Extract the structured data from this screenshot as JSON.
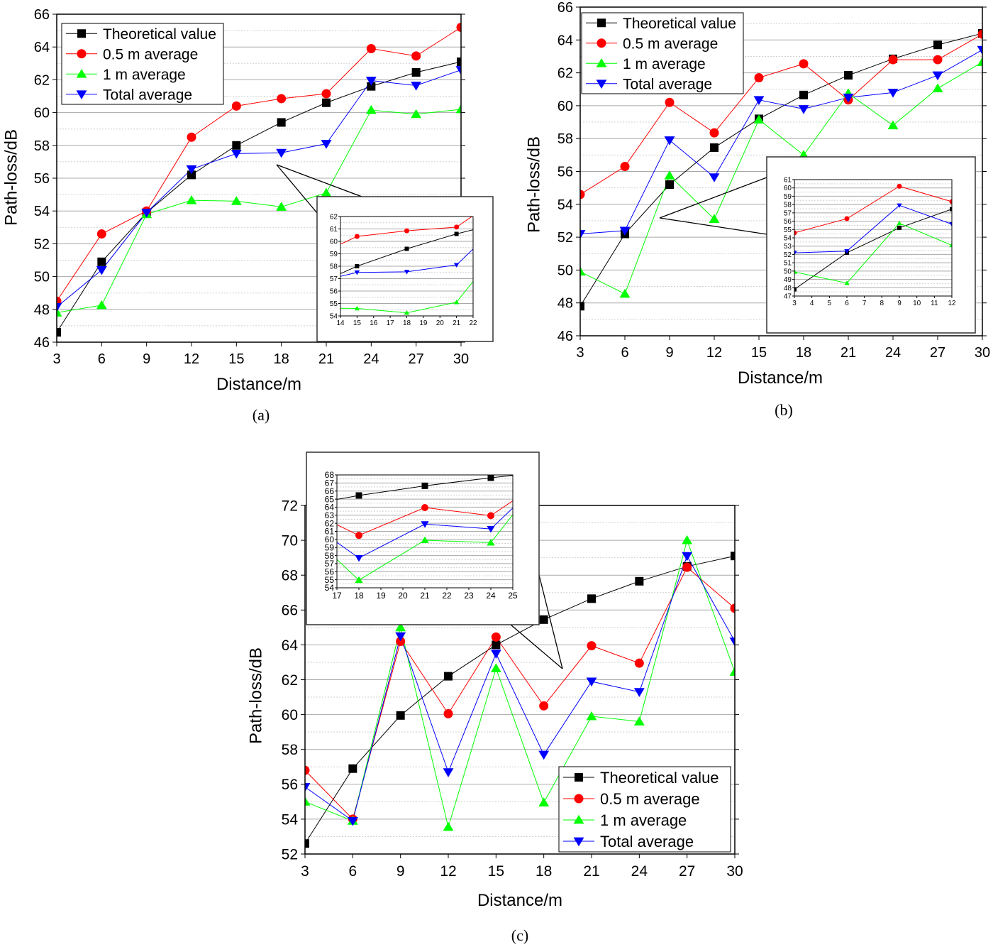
{
  "chart_data": [
    {
      "type": "line",
      "caption": "(a)",
      "xlabel": "Distance/m",
      "ylabel": "Path-loss/dB",
      "xlim": [
        3,
        30
      ],
      "ylim": [
        46,
        66
      ],
      "xticks": [
        3,
        6,
        9,
        12,
        15,
        18,
        21,
        24,
        27,
        30
      ],
      "yticks": [
        46,
        48,
        50,
        52,
        54,
        56,
        58,
        60,
        62,
        64,
        66
      ],
      "grid": true,
      "legend": "top-left",
      "x": [
        3,
        6,
        9,
        12,
        15,
        18,
        21,
        24,
        27,
        30
      ],
      "series": [
        {
          "name": "Theoretical value",
          "color": "#000000",
          "marker": "square",
          "values": [
            46.6,
            50.9,
            53.9,
            56.2,
            58.0,
            59.4,
            60.6,
            61.6,
            62.45,
            63.1
          ]
        },
        {
          "name": "0.5 m average",
          "color": "#ff0000",
          "marker": "circle",
          "values": [
            48.5,
            52.6,
            54.0,
            58.5,
            60.4,
            60.85,
            61.15,
            63.9,
            63.45,
            65.2
          ]
        },
        {
          "name": "1 m average",
          "color": "#00ff00",
          "marker": "triangle-up",
          "values": [
            47.8,
            48.25,
            53.8,
            54.65,
            54.6,
            54.25,
            55.1,
            60.15,
            59.9,
            60.2
          ]
        },
        {
          "name": "Total average",
          "color": "#0000ff",
          "marker": "triangle-down",
          "values": [
            48.15,
            50.4,
            53.9,
            56.55,
            57.5,
            57.55,
            58.1,
            61.95,
            61.65,
            62.6
          ]
        }
      ],
      "inset": {
        "xlim": [
          14,
          22
        ],
        "ylim": [
          54,
          62
        ],
        "xticks": [
          14,
          15,
          16,
          17,
          18,
          19,
          20,
          21,
          22
        ],
        "yticks": [
          54,
          55,
          56,
          57,
          58,
          59,
          60,
          61,
          62
        ]
      }
    },
    {
      "type": "line",
      "caption": "(b)",
      "xlabel": "Distance/m",
      "ylabel": "Path-loss/dB",
      "xlim": [
        3,
        30
      ],
      "ylim": [
        46,
        66
      ],
      "xticks": [
        3,
        6,
        9,
        12,
        15,
        18,
        21,
        24,
        27,
        30
      ],
      "yticks": [
        46,
        48,
        50,
        52,
        54,
        56,
        58,
        60,
        62,
        64,
        66
      ],
      "grid": true,
      "legend": "top-left",
      "x": [
        3,
        6,
        9,
        12,
        15,
        18,
        21,
        24,
        27,
        30
      ],
      "series": [
        {
          "name": "Theoretical value",
          "color": "#000000",
          "marker": "square",
          "values": [
            47.8,
            52.2,
            55.2,
            57.45,
            59.2,
            60.65,
            61.85,
            62.85,
            63.7,
            64.4
          ]
        },
        {
          "name": "0.5 m average",
          "color": "#ff0000",
          "marker": "circle",
          "values": [
            54.6,
            56.3,
            60.2,
            58.35,
            61.7,
            62.55,
            60.35,
            62.8,
            62.8,
            64.35
          ]
        },
        {
          "name": "1 m average",
          "color": "#00ff00",
          "marker": "triangle-up",
          "values": [
            49.9,
            48.55,
            55.75,
            53.1,
            59.15,
            57.0,
            60.75,
            58.8,
            61.05,
            62.65
          ]
        },
        {
          "name": "Total average",
          "color": "#0000ff",
          "marker": "triangle-down",
          "values": [
            52.2,
            52.4,
            57.9,
            55.65,
            60.35,
            59.8,
            60.5,
            60.8,
            61.85,
            63.4
          ]
        }
      ],
      "inset": {
        "xlim": [
          3,
          12
        ],
        "ylim": [
          47,
          61
        ],
        "xticks": [
          3,
          4,
          5,
          6,
          7,
          8,
          9,
          10,
          11,
          12
        ],
        "yticks": [
          47,
          48,
          49,
          50,
          51,
          52,
          53,
          54,
          55,
          56,
          57,
          58,
          59,
          60,
          61
        ]
      }
    },
    {
      "type": "line",
      "caption": "(c)",
      "xlabel": "Distance/m",
      "ylabel": "Path-loss/dB",
      "xlim": [
        3,
        30
      ],
      "ylim": [
        52,
        72
      ],
      "xticks": [
        3,
        6,
        9,
        12,
        15,
        18,
        21,
        24,
        27,
        30
      ],
      "yticks": [
        52,
        54,
        56,
        58,
        60,
        62,
        64,
        66,
        68,
        70,
        72
      ],
      "grid": true,
      "legend": "bottom-right",
      "x": [
        3,
        6,
        9,
        12,
        15,
        18,
        21,
        24,
        27,
        30
      ],
      "series": [
        {
          "name": "Theoretical value",
          "color": "#000000",
          "marker": "square",
          "values": [
            52.6,
            56.9,
            59.95,
            62.2,
            64.0,
            65.45,
            66.65,
            67.65,
            68.5,
            69.1
          ]
        },
        {
          "name": "0.5 m average",
          "color": "#ff0000",
          "marker": "circle",
          "values": [
            56.8,
            54.0,
            64.2,
            60.05,
            64.45,
            60.5,
            63.95,
            62.95,
            68.45,
            66.1
          ]
        },
        {
          "name": "1 m average",
          "color": "#00ff00",
          "marker": "triangle-up",
          "values": [
            55.0,
            53.9,
            65.0,
            53.55,
            62.65,
            54.95,
            59.9,
            59.6,
            70.0,
            62.45
          ]
        },
        {
          "name": "Total average",
          "color": "#0000ff",
          "marker": "triangle-down",
          "values": [
            55.85,
            53.9,
            64.5,
            56.7,
            63.5,
            57.7,
            61.9,
            61.3,
            69.1,
            64.2
          ]
        }
      ],
      "inset": {
        "xlim": [
          17,
          25
        ],
        "ylim": [
          54,
          68
        ],
        "xticks": [
          17,
          18,
          19,
          20,
          21,
          22,
          23,
          24,
          25
        ],
        "yticks": [
          54,
          55,
          56,
          57,
          58,
          59,
          60,
          61,
          62,
          63,
          64,
          65,
          66,
          67,
          68
        ]
      }
    }
  ]
}
